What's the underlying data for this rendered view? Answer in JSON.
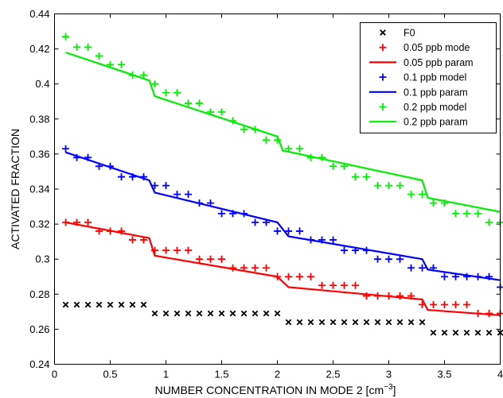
{
  "chart_data": {
    "type": "line",
    "xlabel": "NUMBER CONCENTRATION IN MODE 2 [cm",
    "xlabel_superscript": "−3",
    "xlabel_suffix": "]",
    "ylabel": "ACTIVATED FRACTION",
    "xlim": [
      0,
      4
    ],
    "ylim": [
      0.24,
      0.44
    ],
    "xticks": [
      0,
      0.5,
      1,
      1.5,
      2,
      2.5,
      3,
      3.5,
      4
    ],
    "xtick_labels": [
      "0",
      "0.5",
      "1",
      "1.5",
      "2",
      "2.5",
      "3",
      "3.5",
      "4"
    ],
    "yticks": [
      0.24,
      0.26,
      0.28,
      0.3,
      0.32,
      0.34,
      0.36,
      0.38,
      0.4,
      0.42,
      0.44
    ],
    "ytick_labels": [
      "0.24",
      "0.26",
      "0.28",
      "0.3",
      "0.32",
      "0.34",
      "0.36",
      "0.38",
      "0.4",
      "0.42",
      "0.44"
    ],
    "grid": false,
    "legend_position": "top-right",
    "series": [
      {
        "name": "F0",
        "color": "#000000",
        "marker": "x",
        "x": [
          0.1,
          0.2,
          0.3,
          0.4,
          0.5,
          0.6,
          0.7,
          0.8,
          0.9,
          1.0,
          1.1,
          1.2,
          1.3,
          1.4,
          1.5,
          1.6,
          1.7,
          1.8,
          1.9,
          2.0,
          2.1,
          2.2,
          2.3,
          2.4,
          2.5,
          2.6,
          2.7,
          2.8,
          2.9,
          3.0,
          3.1,
          3.2,
          3.3,
          3.4,
          3.5,
          3.6,
          3.7,
          3.8,
          3.9,
          4.0
        ],
        "y": [
          0.274,
          0.274,
          0.274,
          0.274,
          0.274,
          0.274,
          0.274,
          0.274,
          0.269,
          0.269,
          0.269,
          0.269,
          0.269,
          0.269,
          0.269,
          0.269,
          0.269,
          0.269,
          0.269,
          0.269,
          0.264,
          0.264,
          0.264,
          0.264,
          0.264,
          0.264,
          0.264,
          0.264,
          0.264,
          0.264,
          0.264,
          0.264,
          0.264,
          0.258,
          0.258,
          0.258,
          0.258,
          0.258,
          0.258,
          0.258
        ]
      },
      {
        "name": "0.05 ppb mode",
        "color": "#ff0000",
        "marker": "+",
        "x": [
          0.1,
          0.2,
          0.3,
          0.4,
          0.5,
          0.6,
          0.7,
          0.8,
          0.9,
          1.0,
          1.1,
          1.2,
          1.3,
          1.4,
          1.5,
          1.6,
          1.7,
          1.8,
          1.9,
          2.0,
          2.1,
          2.2,
          2.3,
          2.4,
          2.5,
          2.6,
          2.7,
          2.8,
          2.9,
          3.0,
          3.1,
          3.2,
          3.3,
          3.4,
          3.5,
          3.6,
          3.7,
          3.8,
          3.9,
          4.0
        ],
        "y": [
          0.321,
          0.321,
          0.321,
          0.316,
          0.316,
          0.316,
          0.311,
          0.311,
          0.305,
          0.305,
          0.305,
          0.305,
          0.3,
          0.3,
          0.3,
          0.295,
          0.295,
          0.295,
          0.295,
          0.29,
          0.29,
          0.29,
          0.29,
          0.285,
          0.285,
          0.285,
          0.285,
          0.279,
          0.279,
          0.279,
          0.279,
          0.279,
          0.274,
          0.274,
          0.274,
          0.274,
          0.274,
          0.269,
          0.269,
          0.269
        ]
      },
      {
        "name": "0.05 ppb param",
        "color": "#ff0000",
        "marker": "line",
        "x": [
          0.1,
          0.85,
          0.9,
          2.0,
          2.1,
          3.3,
          3.35,
          4.0
        ],
        "y": [
          0.321,
          0.312,
          0.302,
          0.29,
          0.284,
          0.277,
          0.271,
          0.268
        ]
      },
      {
        "name": "0.1 ppb model",
        "color": "#0000ff",
        "marker": "+",
        "x": [
          0.1,
          0.2,
          0.3,
          0.4,
          0.5,
          0.6,
          0.7,
          0.8,
          0.9,
          1.0,
          1.1,
          1.2,
          1.3,
          1.4,
          1.5,
          1.6,
          1.7,
          1.8,
          1.9,
          2.0,
          2.1,
          2.2,
          2.3,
          2.4,
          2.5,
          2.6,
          2.7,
          2.8,
          2.9,
          3.0,
          3.1,
          3.2,
          3.3,
          3.4,
          3.5,
          3.6,
          3.7,
          3.8,
          3.9,
          4.0
        ],
        "y": [
          0.363,
          0.358,
          0.358,
          0.353,
          0.353,
          0.347,
          0.347,
          0.347,
          0.342,
          0.342,
          0.337,
          0.337,
          0.332,
          0.332,
          0.326,
          0.326,
          0.326,
          0.321,
          0.321,
          0.316,
          0.316,
          0.316,
          0.311,
          0.311,
          0.311,
          0.305,
          0.305,
          0.305,
          0.3,
          0.3,
          0.3,
          0.295,
          0.295,
          0.295,
          0.29,
          0.29,
          0.29,
          0.29,
          0.29,
          0.284
        ]
      },
      {
        "name": "0.1 ppb param",
        "color": "#0000ff",
        "marker": "line",
        "x": [
          0.1,
          0.85,
          0.9,
          2.0,
          2.1,
          3.3,
          3.35,
          4.0
        ],
        "y": [
          0.361,
          0.345,
          0.338,
          0.321,
          0.313,
          0.3,
          0.294,
          0.288
        ]
      },
      {
        "name": "0.2 ppb model",
        "color": "#00ee00",
        "marker": "+",
        "x": [
          0.1,
          0.2,
          0.3,
          0.4,
          0.5,
          0.6,
          0.7,
          0.8,
          0.9,
          1.0,
          1.1,
          1.2,
          1.3,
          1.4,
          1.5,
          1.6,
          1.7,
          1.8,
          1.9,
          2.0,
          2.1,
          2.2,
          2.3,
          2.4,
          2.5,
          2.6,
          2.7,
          2.8,
          2.9,
          3.0,
          3.1,
          3.2,
          3.3,
          3.4,
          3.5,
          3.6,
          3.7,
          3.8,
          3.9,
          4.0
        ],
        "y": [
          0.427,
          0.421,
          0.421,
          0.416,
          0.411,
          0.411,
          0.405,
          0.405,
          0.4,
          0.395,
          0.395,
          0.389,
          0.389,
          0.384,
          0.384,
          0.379,
          0.374,
          0.374,
          0.368,
          0.368,
          0.363,
          0.363,
          0.358,
          0.358,
          0.353,
          0.353,
          0.347,
          0.347,
          0.342,
          0.342,
          0.342,
          0.337,
          0.337,
          0.332,
          0.332,
          0.326,
          0.326,
          0.326,
          0.321,
          0.321
        ]
      },
      {
        "name": "0.2 ppb param",
        "color": "#00ee00",
        "marker": "line",
        "x": [
          0.1,
          0.85,
          0.9,
          2.0,
          2.05,
          3.3,
          3.35,
          4.0
        ],
        "y": [
          0.418,
          0.402,
          0.393,
          0.37,
          0.362,
          0.345,
          0.335,
          0.327
        ]
      }
    ]
  }
}
